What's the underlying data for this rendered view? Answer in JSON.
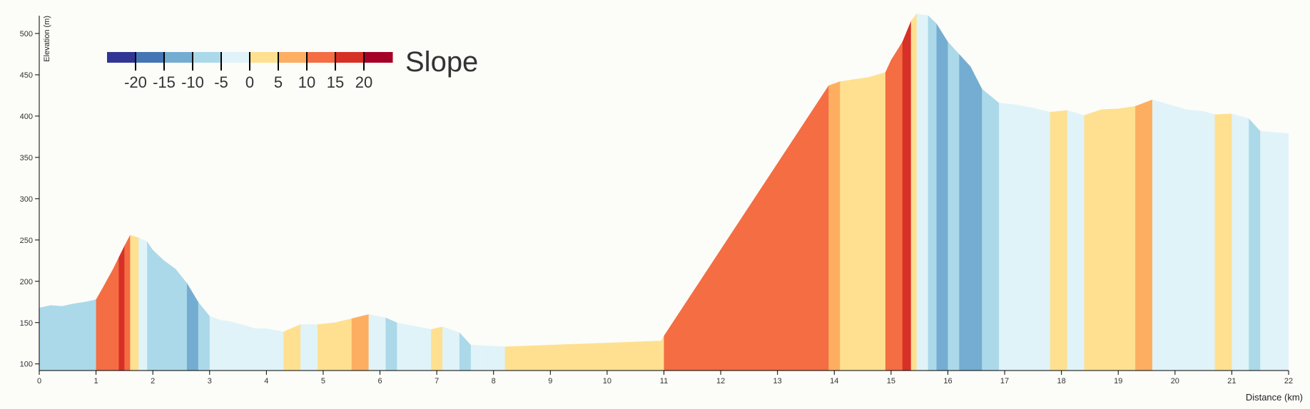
{
  "chart_data": {
    "type": "area",
    "xlabel": "Distance (km)",
    "ylabel": "Elevation (m)",
    "xlim": [
      0,
      22
    ],
    "ylim": [
      92,
      525
    ],
    "x_ticks": [
      0,
      1,
      2,
      3,
      4,
      5,
      6,
      7,
      8,
      9,
      10,
      11,
      12,
      13,
      14,
      15,
      16,
      17,
      18,
      19,
      20,
      21,
      22
    ],
    "y_ticks": [
      100,
      150,
      200,
      250,
      300,
      350,
      400,
      450,
      500
    ],
    "legend": {
      "title": "Slope",
      "placement": "top-left",
      "ticks": [
        -20,
        -15,
        -10,
        -5,
        0,
        5,
        10,
        15,
        20
      ],
      "colors": [
        "#313695",
        "#4575b4",
        "#74add1",
        "#abd9e9",
        "#e0f3f8",
        "#fee090",
        "#fdae61",
        "#f46d43",
        "#d73027",
        "#a50026"
      ]
    },
    "profile": [
      [
        0,
        168
      ],
      [
        0.2,
        171
      ],
      [
        0.4,
        170
      ],
      [
        0.6,
        173
      ],
      [
        0.8,
        175
      ],
      [
        1.0,
        178
      ],
      [
        1.1,
        190
      ],
      [
        1.3,
        215
      ],
      [
        1.5,
        243
      ],
      [
        1.6,
        256
      ],
      [
        1.75,
        253
      ],
      [
        1.9,
        248
      ],
      [
        2.0,
        238
      ],
      [
        2.2,
        225
      ],
      [
        2.4,
        215
      ],
      [
        2.6,
        198
      ],
      [
        2.8,
        175
      ],
      [
        3.0,
        158
      ],
      [
        3.2,
        153
      ],
      [
        3.4,
        151
      ],
      [
        3.6,
        147
      ],
      [
        3.8,
        143
      ],
      [
        4.0,
        143
      ],
      [
        4.3,
        139
      ],
      [
        4.6,
        148
      ],
      [
        4.9,
        148
      ],
      [
        5.2,
        150
      ],
      [
        5.5,
        155
      ],
      [
        5.8,
        160
      ],
      [
        6.1,
        156
      ],
      [
        6.3,
        150
      ],
      [
        6.6,
        146
      ],
      [
        6.9,
        142
      ],
      [
        7.1,
        145
      ],
      [
        7.4,
        138
      ],
      [
        7.6,
        123
      ],
      [
        7.9,
        122
      ],
      [
        8.2,
        121
      ],
      [
        10.95,
        128
      ],
      [
        11.0,
        134
      ],
      [
        13.9,
        437
      ],
      [
        14.1,
        442
      ],
      [
        14.3,
        444
      ],
      [
        14.6,
        447
      ],
      [
        14.9,
        453
      ],
      [
        15.0,
        468
      ],
      [
        15.2,
        490
      ],
      [
        15.35,
        515
      ],
      [
        15.45,
        524
      ],
      [
        15.65,
        522
      ],
      [
        15.8,
        512
      ],
      [
        16.0,
        490
      ],
      [
        16.2,
        475
      ],
      [
        16.4,
        460
      ],
      [
        16.6,
        433
      ],
      [
        16.9,
        416
      ],
      [
        17.2,
        414
      ],
      [
        17.5,
        410
      ],
      [
        17.8,
        405
      ],
      [
        18.1,
        407
      ],
      [
        18.4,
        401
      ],
      [
        18.7,
        408
      ],
      [
        19.0,
        409
      ],
      [
        19.3,
        412
      ],
      [
        19.6,
        420
      ],
      [
        19.9,
        414
      ],
      [
        20.2,
        408
      ],
      [
        20.5,
        406
      ],
      [
        20.7,
        402
      ],
      [
        21.0,
        403
      ],
      [
        21.3,
        397
      ],
      [
        21.5,
        382
      ],
      [
        22.0,
        379
      ]
    ],
    "slope_bands": [
      [
        0,
        1.0,
        3
      ],
      [
        1.0,
        1.2,
        7
      ],
      [
        1.2,
        1.4,
        7
      ],
      [
        1.4,
        1.5,
        8
      ],
      [
        1.5,
        1.6,
        7
      ],
      [
        1.6,
        1.75,
        5
      ],
      [
        1.75,
        1.9,
        4
      ],
      [
        1.9,
        2.0,
        3
      ],
      [
        2.0,
        2.2,
        3
      ],
      [
        2.2,
        2.4,
        3
      ],
      [
        2.4,
        2.6,
        3
      ],
      [
        2.6,
        2.8,
        2
      ],
      [
        2.8,
        3.0,
        3
      ],
      [
        3.0,
        3.2,
        4
      ],
      [
        3.2,
        3.4,
        4
      ],
      [
        3.4,
        3.6,
        4
      ],
      [
        3.6,
        3.8,
        4
      ],
      [
        3.8,
        4.0,
        4
      ],
      [
        4.0,
        4.3,
        4
      ],
      [
        4.3,
        4.6,
        5
      ],
      [
        4.6,
        4.9,
        4
      ],
      [
        4.9,
        5.2,
        5
      ],
      [
        5.2,
        5.5,
        5
      ],
      [
        5.5,
        5.8,
        6
      ],
      [
        5.8,
        6.1,
        4
      ],
      [
        6.1,
        6.3,
        3
      ],
      [
        6.3,
        6.6,
        4
      ],
      [
        6.6,
        6.9,
        4
      ],
      [
        6.9,
        7.1,
        5
      ],
      [
        7.1,
        7.4,
        4
      ],
      [
        7.4,
        7.6,
        3
      ],
      [
        7.6,
        7.9,
        4
      ],
      [
        7.9,
        8.2,
        4
      ],
      [
        8.2,
        10.95,
        5
      ],
      [
        10.95,
        11.0,
        5
      ],
      [
        11.0,
        13.9,
        7
      ],
      [
        13.9,
        14.1,
        6
      ],
      [
        14.1,
        14.3,
        5
      ],
      [
        14.3,
        14.6,
        5
      ],
      [
        14.6,
        14.9,
        5
      ],
      [
        14.9,
        15.0,
        7
      ],
      [
        15.0,
        15.2,
        7
      ],
      [
        15.2,
        15.35,
        8
      ],
      [
        15.35,
        15.45,
        5
      ],
      [
        15.45,
        15.65,
        4
      ],
      [
        15.65,
        15.8,
        3
      ],
      [
        15.8,
        16.0,
        2
      ],
      [
        16.0,
        16.2,
        3
      ],
      [
        16.2,
        16.4,
        2
      ],
      [
        16.4,
        16.6,
        2
      ],
      [
        16.6,
        16.9,
        3
      ],
      [
        16.9,
        17.2,
        4
      ],
      [
        17.2,
        17.5,
        4
      ],
      [
        17.5,
        17.8,
        4
      ],
      [
        17.8,
        18.1,
        5
      ],
      [
        18.1,
        18.4,
        4
      ],
      [
        18.4,
        18.7,
        5
      ],
      [
        18.7,
        19.0,
        5
      ],
      [
        19.0,
        19.3,
        5
      ],
      [
        19.3,
        19.6,
        6
      ],
      [
        19.6,
        19.9,
        4
      ],
      [
        19.9,
        20.2,
        4
      ],
      [
        20.2,
        20.5,
        4
      ],
      [
        20.5,
        20.7,
        4
      ],
      [
        20.7,
        21.0,
        5
      ],
      [
        21.0,
        21.3,
        4
      ],
      [
        21.3,
        21.5,
        3
      ],
      [
        21.5,
        22.0,
        4
      ]
    ]
  }
}
